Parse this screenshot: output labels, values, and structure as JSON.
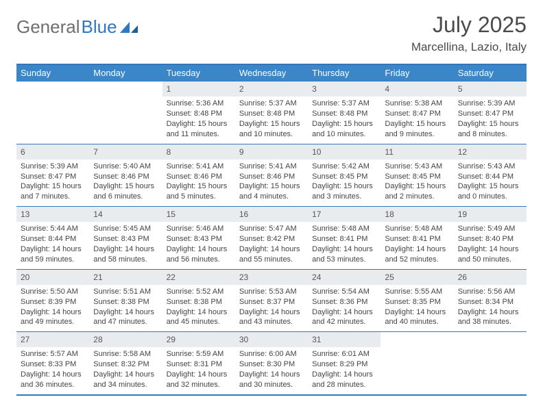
{
  "brand": {
    "part1": "General",
    "part2": "Blue"
  },
  "title": "July 2025",
  "location": "Marcellina, Lazio, Italy",
  "colors": {
    "header_bg": "#3a86c8",
    "border": "#2f78bf",
    "daynum_bg": "#e9ecef",
    "text": "#444444",
    "title": "#4a4a4a"
  },
  "weekdays": [
    "Sunday",
    "Monday",
    "Tuesday",
    "Wednesday",
    "Thursday",
    "Friday",
    "Saturday"
  ],
  "weeks": [
    [
      {
        "n": "",
        "sr": "",
        "ss": "",
        "dl": ""
      },
      {
        "n": "",
        "sr": "",
        "ss": "",
        "dl": ""
      },
      {
        "n": "1",
        "sr": "Sunrise: 5:36 AM",
        "ss": "Sunset: 8:48 PM",
        "dl": "Daylight: 15 hours and 11 minutes."
      },
      {
        "n": "2",
        "sr": "Sunrise: 5:37 AM",
        "ss": "Sunset: 8:48 PM",
        "dl": "Daylight: 15 hours and 10 minutes."
      },
      {
        "n": "3",
        "sr": "Sunrise: 5:37 AM",
        "ss": "Sunset: 8:48 PM",
        "dl": "Daylight: 15 hours and 10 minutes."
      },
      {
        "n": "4",
        "sr": "Sunrise: 5:38 AM",
        "ss": "Sunset: 8:47 PM",
        "dl": "Daylight: 15 hours and 9 minutes."
      },
      {
        "n": "5",
        "sr": "Sunrise: 5:39 AM",
        "ss": "Sunset: 8:47 PM",
        "dl": "Daylight: 15 hours and 8 minutes."
      }
    ],
    [
      {
        "n": "6",
        "sr": "Sunrise: 5:39 AM",
        "ss": "Sunset: 8:47 PM",
        "dl": "Daylight: 15 hours and 7 minutes."
      },
      {
        "n": "7",
        "sr": "Sunrise: 5:40 AM",
        "ss": "Sunset: 8:46 PM",
        "dl": "Daylight: 15 hours and 6 minutes."
      },
      {
        "n": "8",
        "sr": "Sunrise: 5:41 AM",
        "ss": "Sunset: 8:46 PM",
        "dl": "Daylight: 15 hours and 5 minutes."
      },
      {
        "n": "9",
        "sr": "Sunrise: 5:41 AM",
        "ss": "Sunset: 8:46 PM",
        "dl": "Daylight: 15 hours and 4 minutes."
      },
      {
        "n": "10",
        "sr": "Sunrise: 5:42 AM",
        "ss": "Sunset: 8:45 PM",
        "dl": "Daylight: 15 hours and 3 minutes."
      },
      {
        "n": "11",
        "sr": "Sunrise: 5:43 AM",
        "ss": "Sunset: 8:45 PM",
        "dl": "Daylight: 15 hours and 2 minutes."
      },
      {
        "n": "12",
        "sr": "Sunrise: 5:43 AM",
        "ss": "Sunset: 8:44 PM",
        "dl": "Daylight: 15 hours and 0 minutes."
      }
    ],
    [
      {
        "n": "13",
        "sr": "Sunrise: 5:44 AM",
        "ss": "Sunset: 8:44 PM",
        "dl": "Daylight: 14 hours and 59 minutes."
      },
      {
        "n": "14",
        "sr": "Sunrise: 5:45 AM",
        "ss": "Sunset: 8:43 PM",
        "dl": "Daylight: 14 hours and 58 minutes."
      },
      {
        "n": "15",
        "sr": "Sunrise: 5:46 AM",
        "ss": "Sunset: 8:43 PM",
        "dl": "Daylight: 14 hours and 56 minutes."
      },
      {
        "n": "16",
        "sr": "Sunrise: 5:47 AM",
        "ss": "Sunset: 8:42 PM",
        "dl": "Daylight: 14 hours and 55 minutes."
      },
      {
        "n": "17",
        "sr": "Sunrise: 5:48 AM",
        "ss": "Sunset: 8:41 PM",
        "dl": "Daylight: 14 hours and 53 minutes."
      },
      {
        "n": "18",
        "sr": "Sunrise: 5:48 AM",
        "ss": "Sunset: 8:41 PM",
        "dl": "Daylight: 14 hours and 52 minutes."
      },
      {
        "n": "19",
        "sr": "Sunrise: 5:49 AM",
        "ss": "Sunset: 8:40 PM",
        "dl": "Daylight: 14 hours and 50 minutes."
      }
    ],
    [
      {
        "n": "20",
        "sr": "Sunrise: 5:50 AM",
        "ss": "Sunset: 8:39 PM",
        "dl": "Daylight: 14 hours and 49 minutes."
      },
      {
        "n": "21",
        "sr": "Sunrise: 5:51 AM",
        "ss": "Sunset: 8:38 PM",
        "dl": "Daylight: 14 hours and 47 minutes."
      },
      {
        "n": "22",
        "sr": "Sunrise: 5:52 AM",
        "ss": "Sunset: 8:38 PM",
        "dl": "Daylight: 14 hours and 45 minutes."
      },
      {
        "n": "23",
        "sr": "Sunrise: 5:53 AM",
        "ss": "Sunset: 8:37 PM",
        "dl": "Daylight: 14 hours and 43 minutes."
      },
      {
        "n": "24",
        "sr": "Sunrise: 5:54 AM",
        "ss": "Sunset: 8:36 PM",
        "dl": "Daylight: 14 hours and 42 minutes."
      },
      {
        "n": "25",
        "sr": "Sunrise: 5:55 AM",
        "ss": "Sunset: 8:35 PM",
        "dl": "Daylight: 14 hours and 40 minutes."
      },
      {
        "n": "26",
        "sr": "Sunrise: 5:56 AM",
        "ss": "Sunset: 8:34 PM",
        "dl": "Daylight: 14 hours and 38 minutes."
      }
    ],
    [
      {
        "n": "27",
        "sr": "Sunrise: 5:57 AM",
        "ss": "Sunset: 8:33 PM",
        "dl": "Daylight: 14 hours and 36 minutes."
      },
      {
        "n": "28",
        "sr": "Sunrise: 5:58 AM",
        "ss": "Sunset: 8:32 PM",
        "dl": "Daylight: 14 hours and 34 minutes."
      },
      {
        "n": "29",
        "sr": "Sunrise: 5:59 AM",
        "ss": "Sunset: 8:31 PM",
        "dl": "Daylight: 14 hours and 32 minutes."
      },
      {
        "n": "30",
        "sr": "Sunrise: 6:00 AM",
        "ss": "Sunset: 8:30 PM",
        "dl": "Daylight: 14 hours and 30 minutes."
      },
      {
        "n": "31",
        "sr": "Sunrise: 6:01 AM",
        "ss": "Sunset: 8:29 PM",
        "dl": "Daylight: 14 hours and 28 minutes."
      },
      {
        "n": "",
        "sr": "",
        "ss": "",
        "dl": ""
      },
      {
        "n": "",
        "sr": "",
        "ss": "",
        "dl": ""
      }
    ]
  ]
}
